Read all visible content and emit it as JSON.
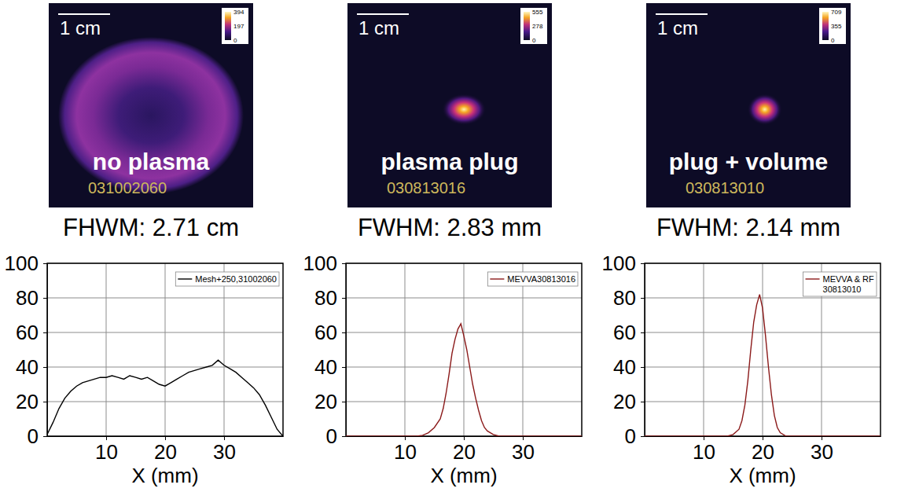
{
  "images": [
    {
      "scale_bar": "1 cm",
      "label": "no plasma",
      "shot": "031002060",
      "colorbar_range": [
        0,
        394
      ],
      "colorbar_ticks": [
        0,
        197,
        394
      ],
      "caption": "FHWM: 2.71 cm"
    },
    {
      "scale_bar": "1 cm",
      "label": "plasma plug",
      "shot": "030813016",
      "colorbar_range": [
        0,
        555
      ],
      "colorbar_ticks": [
        0,
        278,
        555
      ],
      "caption": "FWHM: 2.83 mm"
    },
    {
      "scale_bar": "1 cm",
      "label": "plug + volume",
      "shot": "030813010",
      "colorbar_range": [
        0,
        709
      ],
      "colorbar_ticks": [
        0,
        355,
        709
      ],
      "caption": "FWHM: 2.14 mm"
    }
  ],
  "chart_data": [
    {
      "type": "line",
      "x_label": "X (mm)",
      "xlim": [
        0,
        40
      ],
      "xticks": [
        10,
        20,
        30
      ],
      "ylim": [
        0,
        100
      ],
      "yticks": [
        0,
        20,
        40,
        60,
        80,
        100
      ],
      "grid": true,
      "legend": "upper right",
      "x": [
        0,
        1,
        2,
        3,
        4,
        5,
        6,
        7,
        8,
        9,
        10,
        11,
        12,
        13,
        14,
        15,
        16,
        17,
        18,
        19,
        20,
        21,
        22,
        23,
        24,
        25,
        26,
        27,
        28,
        29,
        30,
        31,
        32,
        33,
        34,
        35,
        36,
        37,
        38,
        39,
        40
      ],
      "series": [
        {
          "name": "Mesh+250,31002060",
          "color": "#000000",
          "values": [
            1,
            8,
            16,
            22,
            26,
            29,
            31,
            32,
            33,
            34,
            34,
            35,
            34,
            33,
            35,
            34,
            33,
            34,
            32,
            30,
            29,
            31,
            33,
            35,
            37,
            38,
            39,
            40,
            41,
            44,
            41,
            39,
            37,
            34,
            31,
            28,
            24,
            18,
            11,
            4,
            0
          ]
        }
      ]
    },
    {
      "type": "line",
      "x_label": "X (mm)",
      "xlim": [
        0,
        40
      ],
      "xticks": [
        10,
        20,
        30
      ],
      "ylim": [
        0,
        100
      ],
      "yticks": [
        0,
        20,
        40,
        60,
        80,
        100
      ],
      "grid": true,
      "legend": "upper right",
      "x": [
        0,
        12,
        13,
        14,
        15,
        16,
        16.5,
        17,
        17.5,
        18,
        18.5,
        19,
        19.5,
        20,
        20.5,
        21,
        21.5,
        22,
        22.5,
        23,
        23.5,
        24,
        25,
        26,
        40
      ],
      "series": [
        {
          "name": "MEVVA30813016",
          "color": "#8b1a1a",
          "values": [
            0,
            0,
            0.5,
            2,
            5,
            10,
            16,
            25,
            36,
            48,
            56,
            62,
            65,
            58,
            50,
            40,
            30,
            22,
            15,
            9,
            5,
            3,
            1,
            0,
            0
          ]
        }
      ]
    },
    {
      "type": "line",
      "x_label": "X (mm)",
      "xlim": [
        0,
        40
      ],
      "xticks": [
        10,
        20,
        30
      ],
      "ylim": [
        0,
        100
      ],
      "yticks": [
        0,
        20,
        40,
        60,
        80,
        100
      ],
      "grid": true,
      "legend": "upper right",
      "x": [
        0,
        14,
        15,
        16,
        16.5,
        17,
        17.5,
        18,
        18.5,
        19,
        19.5,
        20,
        20.5,
        21,
        21.5,
        22,
        22.5,
        23,
        24,
        40
      ],
      "series": [
        {
          "name": "MEVVA & RF 30813010",
          "color": "#8b1a1a",
          "values": [
            0,
            0,
            1,
            4,
            9,
            18,
            32,
            50,
            66,
            76,
            82,
            74,
            58,
            40,
            24,
            12,
            5,
            2,
            0,
            0
          ]
        }
      ]
    }
  ]
}
